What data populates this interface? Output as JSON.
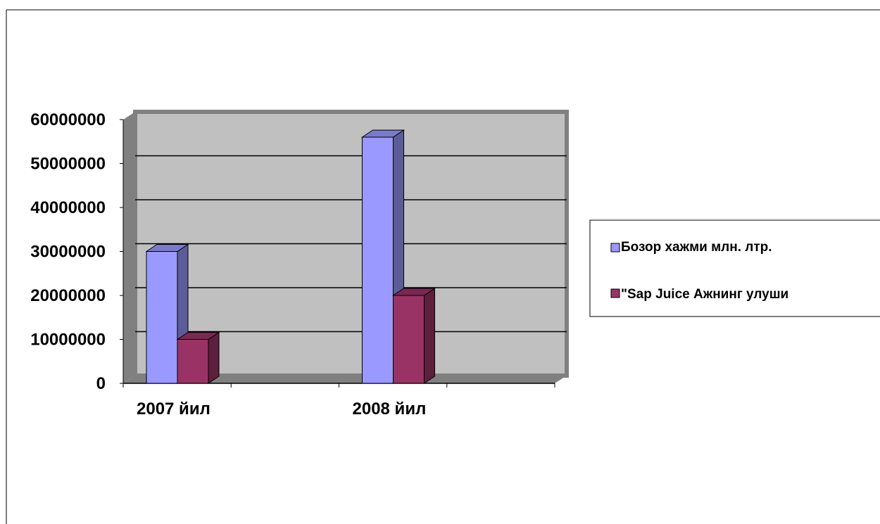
{
  "chart_data": {
    "type": "bar",
    "style": "3d-clustered-column",
    "categories": [
      "2007 йил",
      "2008 йил"
    ],
    "series": [
      {
        "name": "Бозор хажми млн. лтр.",
        "values": [
          30000000,
          56000000
        ],
        "color": "#9999ff"
      },
      {
        "name": "\"Sap Juice Ажнинг улуши",
        "values": [
          10000000,
          20000000
        ],
        "color": "#993366"
      }
    ],
    "ylim": [
      0,
      60000000
    ],
    "yticks": [
      "0",
      "10000000",
      "20000000",
      "30000000",
      "40000000",
      "50000000",
      "60000000"
    ],
    "grid": true,
    "legend": "right",
    "plot_wall_color": "#c0c0c0",
    "plot_frame_color": "#808080"
  }
}
